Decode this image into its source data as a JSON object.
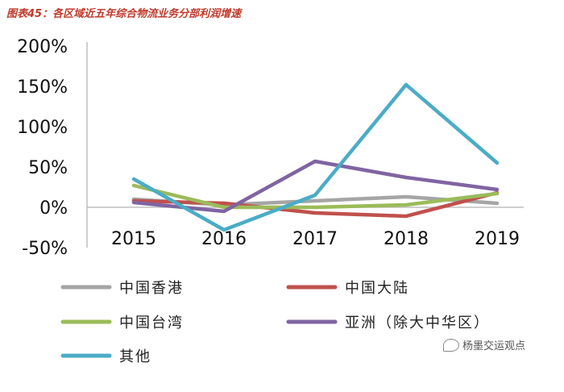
{
  "title": "图表45：各区域近五年综合物流业务分部利润增速",
  "watermark": "杨墨交运观点",
  "colors": {
    "hongkong": "#a5a5a5",
    "mainland": "#c0504d",
    "taiwan": "#9bbb59",
    "asia": "#8064a2",
    "other": "#4bacc6"
  },
  "chart_data": {
    "type": "line",
    "title": "图表45：各区域近五年综合物流业务分部利润增速",
    "x": [
      "2015",
      "2016",
      "2017",
      "2018",
      "2019"
    ],
    "ylim": [
      -50,
      200
    ],
    "yticks": [
      "-50%",
      "0%",
      "50%",
      "100%",
      "150%",
      "200%"
    ],
    "ytick_values": [
      -50,
      0,
      50,
      100,
      150,
      200
    ],
    "legend_position": "bottom",
    "grid": false,
    "series": [
      {
        "name": "中国香港",
        "color": "#a5a5a5",
        "values": [
          10,
          3,
          8,
          13,
          5
        ]
      },
      {
        "name": "中国大陆",
        "color": "#c0504d",
        "values": [
          8,
          5,
          -7,
          -11,
          18
        ]
      },
      {
        "name": "中国台湾",
        "color": "#9bbb59",
        "values": [
          27,
          0,
          0,
          3,
          17
        ]
      },
      {
        "name": "亚洲（除大中华区）",
        "color": "#8064a2",
        "values": [
          6,
          -5,
          57,
          37,
          22
        ]
      },
      {
        "name": "其他",
        "color": "#4bacc6",
        "values": [
          35,
          -28,
          15,
          152,
          55
        ]
      }
    ]
  }
}
